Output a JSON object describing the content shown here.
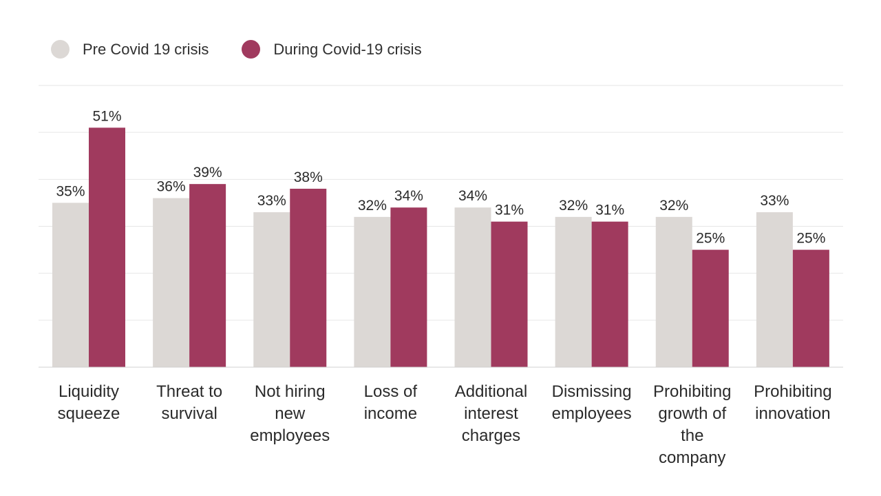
{
  "legend": {
    "pre_label": "Pre Covid 19 crisis",
    "during_label": "During Covid-19 crisis"
  },
  "colors": {
    "pre": "#dcd8d5",
    "during": "#a03a5e",
    "grid": "#e6e6e6",
    "axis": "#d0d0d0",
    "text": "#2a2a2a"
  },
  "chart_data": {
    "type": "bar",
    "title": "",
    "xlabel": "",
    "ylabel": "",
    "ylim": [
      0,
      60
    ],
    "grid": true,
    "legend_position": "top-left",
    "categories": [
      "Liquidity squeeze",
      "Threat to survival",
      "Not hiring new employees",
      "Loss of income",
      "Additional interest charges",
      "Dismissing employees",
      "Prohibiting growth of the company",
      "Prohibiting innovation"
    ],
    "category_lines": [
      [
        "Liquidity",
        "squeeze"
      ],
      [
        "Threat to",
        "survival"
      ],
      [
        "Not hiring",
        "new",
        "employees"
      ],
      [
        "Loss of",
        "income"
      ],
      [
        "Additional",
        "interest",
        "charges"
      ],
      [
        "Dismissing",
        "employees"
      ],
      [
        "Prohibiting",
        "growth of",
        "the",
        "company"
      ],
      [
        "Prohibiting",
        "innovation"
      ]
    ],
    "series": [
      {
        "name": "Pre Covid 19 crisis",
        "values": [
          35,
          36,
          33,
          32,
          34,
          32,
          32,
          33
        ],
        "labels": [
          "35%",
          "36%",
          "33%",
          "32%",
          "34%",
          "32%",
          "32%",
          "33%"
        ]
      },
      {
        "name": "During Covid-19 crisis",
        "values": [
          51,
          39,
          38,
          34,
          31,
          31,
          25,
          25
        ],
        "labels": [
          "51%",
          "39%",
          "38%",
          "34%",
          "31%",
          "31%",
          "25%",
          "25%"
        ]
      }
    ]
  }
}
